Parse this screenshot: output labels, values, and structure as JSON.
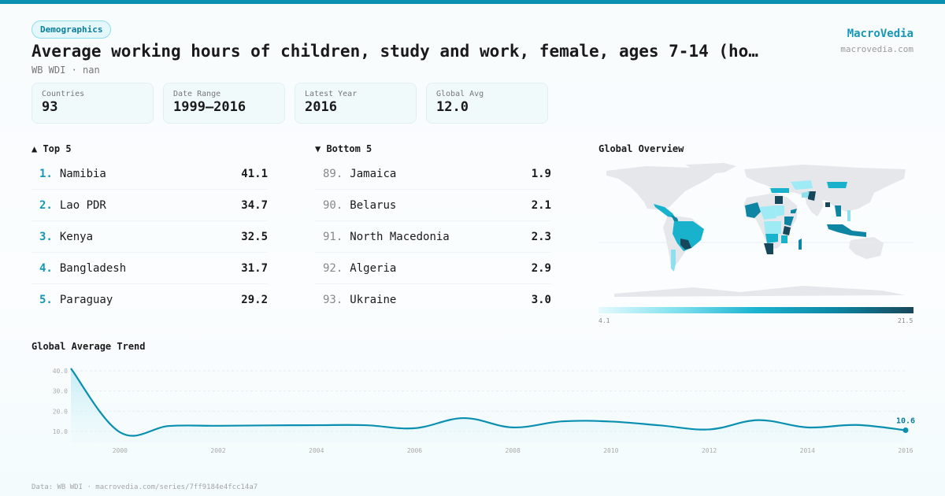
{
  "header": {
    "category": "Demographics",
    "title": "Average working hours of children, study and work, female, ages 7-14 (ho…",
    "subtitle": "WB WDI · nan",
    "brand": "MacroVedia",
    "brand_url": "macrovedia.com"
  },
  "stats": [
    {
      "label": "Countries",
      "value": "93"
    },
    {
      "label": "Date Range",
      "value": "1999–2016"
    },
    {
      "label": "Latest Year",
      "value": "2016"
    },
    {
      "label": "Global Avg",
      "value": "12.0"
    }
  ],
  "top5": {
    "heading": "▲ Top 5",
    "items": [
      {
        "rank": "1.",
        "name": "Namibia",
        "value": "41.1"
      },
      {
        "rank": "2.",
        "name": "Lao PDR",
        "value": "34.7"
      },
      {
        "rank": "3.",
        "name": "Kenya",
        "value": "32.5"
      },
      {
        "rank": "4.",
        "name": "Bangladesh",
        "value": "31.7"
      },
      {
        "rank": "5.",
        "name": "Paraguay",
        "value": "29.2"
      }
    ]
  },
  "bottom5": {
    "heading": "▼ Bottom 5",
    "items": [
      {
        "rank": "89.",
        "name": "Jamaica",
        "value": "1.9"
      },
      {
        "rank": "90.",
        "name": "Belarus",
        "value": "2.1"
      },
      {
        "rank": "91.",
        "name": "North Macedonia",
        "value": "2.3"
      },
      {
        "rank": "92.",
        "name": "Algeria",
        "value": "2.9"
      },
      {
        "rank": "93.",
        "name": "Ukraine",
        "value": "3.0"
      }
    ]
  },
  "map": {
    "heading": "Global Overview",
    "legend_min": "4.1",
    "legend_max": "21.5",
    "colors": {
      "land": "#e6e7eb",
      "low": "#9eeaf5",
      "mid": "#19b2cd",
      "high": "#0e86a3",
      "max": "#17475b"
    }
  },
  "trend": {
    "heading": "Global Average Trend"
  },
  "chart_data": {
    "type": "line",
    "title": "Global Average Trend",
    "x": [
      1999,
      2000,
      2001,
      2002,
      2003,
      2004,
      2005,
      2006,
      2007,
      2008,
      2009,
      2010,
      2011,
      2012,
      2013,
      2014,
      2015,
      2016
    ],
    "series": [
      {
        "name": "Global Average",
        "values": [
          41.2,
          9.6,
          12.7,
          12.8,
          13.0,
          13.1,
          13.1,
          11.6,
          16.6,
          12.0,
          15.0,
          14.9,
          13.0,
          11.0,
          15.6,
          12.0,
          13.2,
          10.6
        ]
      }
    ],
    "x_ticks": [
      "2000",
      "2002",
      "2004",
      "2006",
      "2008",
      "2010",
      "2012",
      "2014",
      "2016"
    ],
    "y_ticks": [
      "10.0",
      "20.0",
      "30.0",
      "40.0"
    ],
    "ylim": [
      0,
      42
    ],
    "last_label": "10.6",
    "grid": true,
    "line_color": "#0a8fb0"
  },
  "footer": {
    "text": "Data: WB WDI · macrovedia.com/series/7ff9184e4fcc14a7"
  }
}
